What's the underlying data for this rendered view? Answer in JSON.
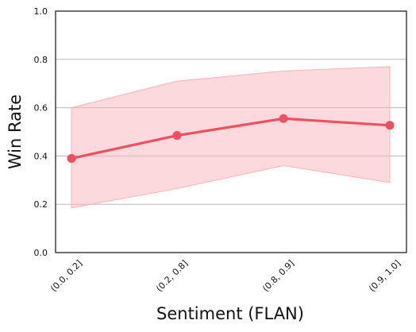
{
  "chart_data": {
    "type": "line",
    "xlabel": "Sentiment (FLAN)",
    "ylabel": "Win Rate",
    "categories": [
      "(0.0, 0.2]",
      "(0.2, 0.8]",
      "(0.8, 0.9]",
      "(0.9, 1.0]"
    ],
    "series": [
      {
        "values": [
          0.39,
          0.485,
          0.555,
          0.527
        ],
        "lower": [
          0.185,
          0.265,
          0.36,
          0.29
        ],
        "upper": [
          0.6,
          0.71,
          0.752,
          0.77
        ]
      }
    ],
    "ylim": [
      0,
      1
    ],
    "yticks": [
      0.0,
      0.2,
      0.4,
      0.6,
      0.8,
      1.0
    ],
    "ytick_labels": [
      "0.0",
      "0.2",
      "0.4",
      "0.6",
      "0.8",
      "1.0"
    ],
    "grid": "horizontal",
    "line_color": "#ef5060",
    "band_color": "#f7b3bb"
  }
}
